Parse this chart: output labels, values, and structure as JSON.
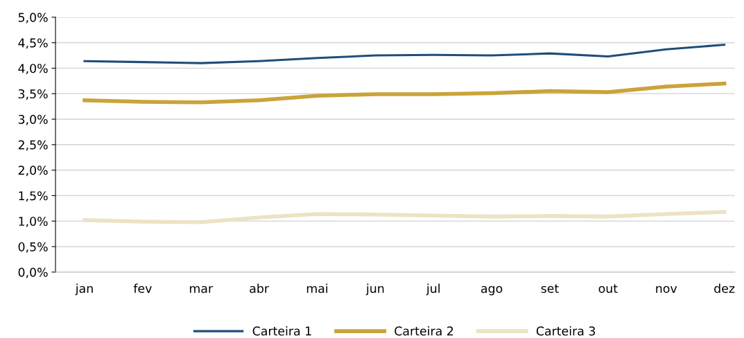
{
  "chart_data": {
    "type": "line",
    "categories": [
      "jan",
      "fev",
      "mar",
      "abr",
      "mai",
      "jun",
      "jul",
      "ago",
      "set",
      "out",
      "nov",
      "dez"
    ],
    "series": [
      {
        "name": "Carteira 1",
        "color": "#1f4e79",
        "values": [
          4.14,
          4.12,
          4.1,
          4.14,
          4.2,
          4.25,
          4.26,
          4.25,
          4.29,
          4.23,
          4.37,
          4.46
        ]
      },
      {
        "name": "Carteira 2",
        "color": "#c9a43a",
        "values": [
          3.37,
          3.34,
          3.33,
          3.37,
          3.46,
          3.49,
          3.49,
          3.51,
          3.55,
          3.53,
          3.64,
          3.7
        ]
      },
      {
        "name": "Carteira 3",
        "color": "#ede3c4",
        "values": [
          1.02,
          0.99,
          0.98,
          1.07,
          1.14,
          1.13,
          1.11,
          1.09,
          1.1,
          1.09,
          1.14,
          1.18
        ]
      }
    ],
    "ylim": [
      0,
      5
    ],
    "yticks": [
      {
        "value": 0,
        "label": "0,0%"
      },
      {
        "value": 0.5,
        "label": "0,5%"
      },
      {
        "value": 1,
        "label": "1,0%"
      },
      {
        "value": 1.5,
        "label": "1,5%"
      },
      {
        "value": 2,
        "label": "2,0%"
      },
      {
        "value": 2.5,
        "label": "2,5%"
      },
      {
        "value": 3,
        "label": "3,0%"
      },
      {
        "value": 3.5,
        "label": "3,5%"
      },
      {
        "value": 4,
        "label": "4,0%"
      },
      {
        "value": 4.5,
        "label": "4,5%"
      },
      {
        "value": 5,
        "label": "5,0%"
      }
    ],
    "grid": "y",
    "legend": "bottom",
    "marker": "none",
    "line_style": "solid"
  }
}
